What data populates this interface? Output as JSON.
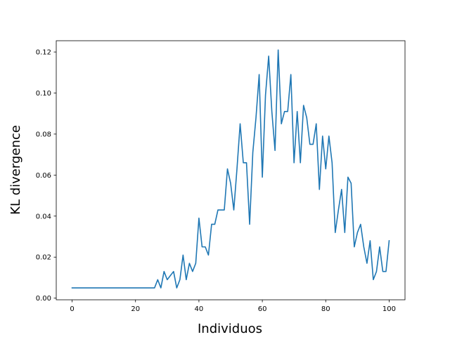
{
  "chart_data": {
    "type": "line",
    "title": "",
    "xlabel": "Individuos",
    "ylabel": "KL divergence",
    "xlim": [
      -5,
      105
    ],
    "ylim": [
      -0.0008,
      0.1255
    ],
    "xticks": [
      0,
      20,
      40,
      60,
      80,
      100
    ],
    "xtick_labels": [
      "0",
      "20",
      "40",
      "60",
      "80",
      "100"
    ],
    "yticks": [
      0.0,
      0.02,
      0.04,
      0.06,
      0.08,
      0.1,
      0.12
    ],
    "ytick_labels": [
      "0.00",
      "0.02",
      "0.04",
      "0.06",
      "0.08",
      "0.10",
      "0.12"
    ],
    "grid": false,
    "series": [
      {
        "color": "#1f77b4",
        "x": [
          0,
          1,
          2,
          3,
          4,
          5,
          6,
          7,
          8,
          9,
          10,
          11,
          12,
          13,
          14,
          15,
          16,
          17,
          18,
          19,
          20,
          21,
          22,
          23,
          24,
          25,
          26,
          27,
          28,
          29,
          30,
          31,
          32,
          33,
          34,
          35,
          36,
          37,
          38,
          39,
          40,
          41,
          42,
          43,
          44,
          45,
          46,
          47,
          48,
          49,
          50,
          51,
          52,
          53,
          54,
          55,
          56,
          57,
          58,
          59,
          60,
          61,
          62,
          63,
          64,
          65,
          66,
          67,
          68,
          69,
          70,
          71,
          72,
          73,
          74,
          75,
          76,
          77,
          78,
          79,
          80,
          81,
          82,
          83,
          84,
          85,
          86,
          87,
          88,
          89,
          90,
          91,
          92,
          93,
          94,
          95,
          96,
          97,
          98,
          99,
          100
        ],
        "y": [
          0.005,
          0.005,
          0.005,
          0.005,
          0.005,
          0.005,
          0.005,
          0.005,
          0.005,
          0.005,
          0.005,
          0.005,
          0.005,
          0.005,
          0.005,
          0.005,
          0.005,
          0.005,
          0.005,
          0.005,
          0.005,
          0.005,
          0.005,
          0.005,
          0.005,
          0.005,
          0.005,
          0.009,
          0.005,
          0.013,
          0.009,
          0.011,
          0.013,
          0.005,
          0.009,
          0.021,
          0.009,
          0.017,
          0.013,
          0.017,
          0.039,
          0.025,
          0.025,
          0.021,
          0.036,
          0.036,
          0.043,
          0.043,
          0.043,
          0.063,
          0.056,
          0.043,
          0.063,
          0.085,
          0.066,
          0.066,
          0.036,
          0.071,
          0.088,
          0.109,
          0.059,
          0.099,
          0.118,
          0.091,
          0.072,
          0.121,
          0.085,
          0.091,
          0.091,
          0.109,
          0.066,
          0.091,
          0.066,
          0.094,
          0.088,
          0.075,
          0.075,
          0.085,
          0.053,
          0.079,
          0.063,
          0.079,
          0.066,
          0.032,
          0.043,
          0.053,
          0.032,
          0.059,
          0.056,
          0.025,
          0.032,
          0.036,
          0.025,
          0.017,
          0.028,
          0.009,
          0.013,
          0.025,
          0.013,
          0.013,
          0.028
        ]
      }
    ]
  }
}
